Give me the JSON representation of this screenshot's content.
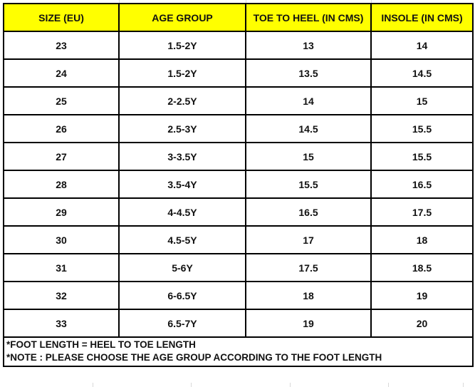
{
  "table": {
    "headers": [
      "SIZE (EU)",
      "AGE GROUP",
      "TOE TO HEEL (IN CMS)",
      "INSOLE (IN CMS)"
    ],
    "rows": [
      [
        "23",
        "1.5-2Y",
        "13",
        "14"
      ],
      [
        "24",
        "1.5-2Y",
        "13.5",
        "14.5"
      ],
      [
        "25",
        "2-2.5Y",
        "14",
        "15"
      ],
      [
        "26",
        "2.5-3Y",
        "14.5",
        "15.5"
      ],
      [
        "27",
        "3-3.5Y",
        "15",
        "15.5"
      ],
      [
        "28",
        "3.5-4Y",
        "15.5",
        "16.5"
      ],
      [
        "29",
        "4-4.5Y",
        "16.5",
        "17.5"
      ],
      [
        "30",
        "4.5-5Y",
        "17",
        "18"
      ],
      [
        "31",
        "5-6Y",
        "17.5",
        "18.5"
      ],
      [
        "32",
        "6-6.5Y",
        "18",
        "19"
      ],
      [
        "33",
        "6.5-7Y",
        "19",
        "20"
      ]
    ],
    "notes": [
      "*FOOT LENGTH = HEEL TO TOE LENGTH",
      "*NOTE : PLEASE CHOOSE THE AGE GROUP ACCORDING TO THE FOOT LENGTH"
    ]
  },
  "colors": {
    "header_bg": "#ffff00",
    "border": "#000000",
    "text": "#111111",
    "gridline": "#d9d9d9"
  }
}
